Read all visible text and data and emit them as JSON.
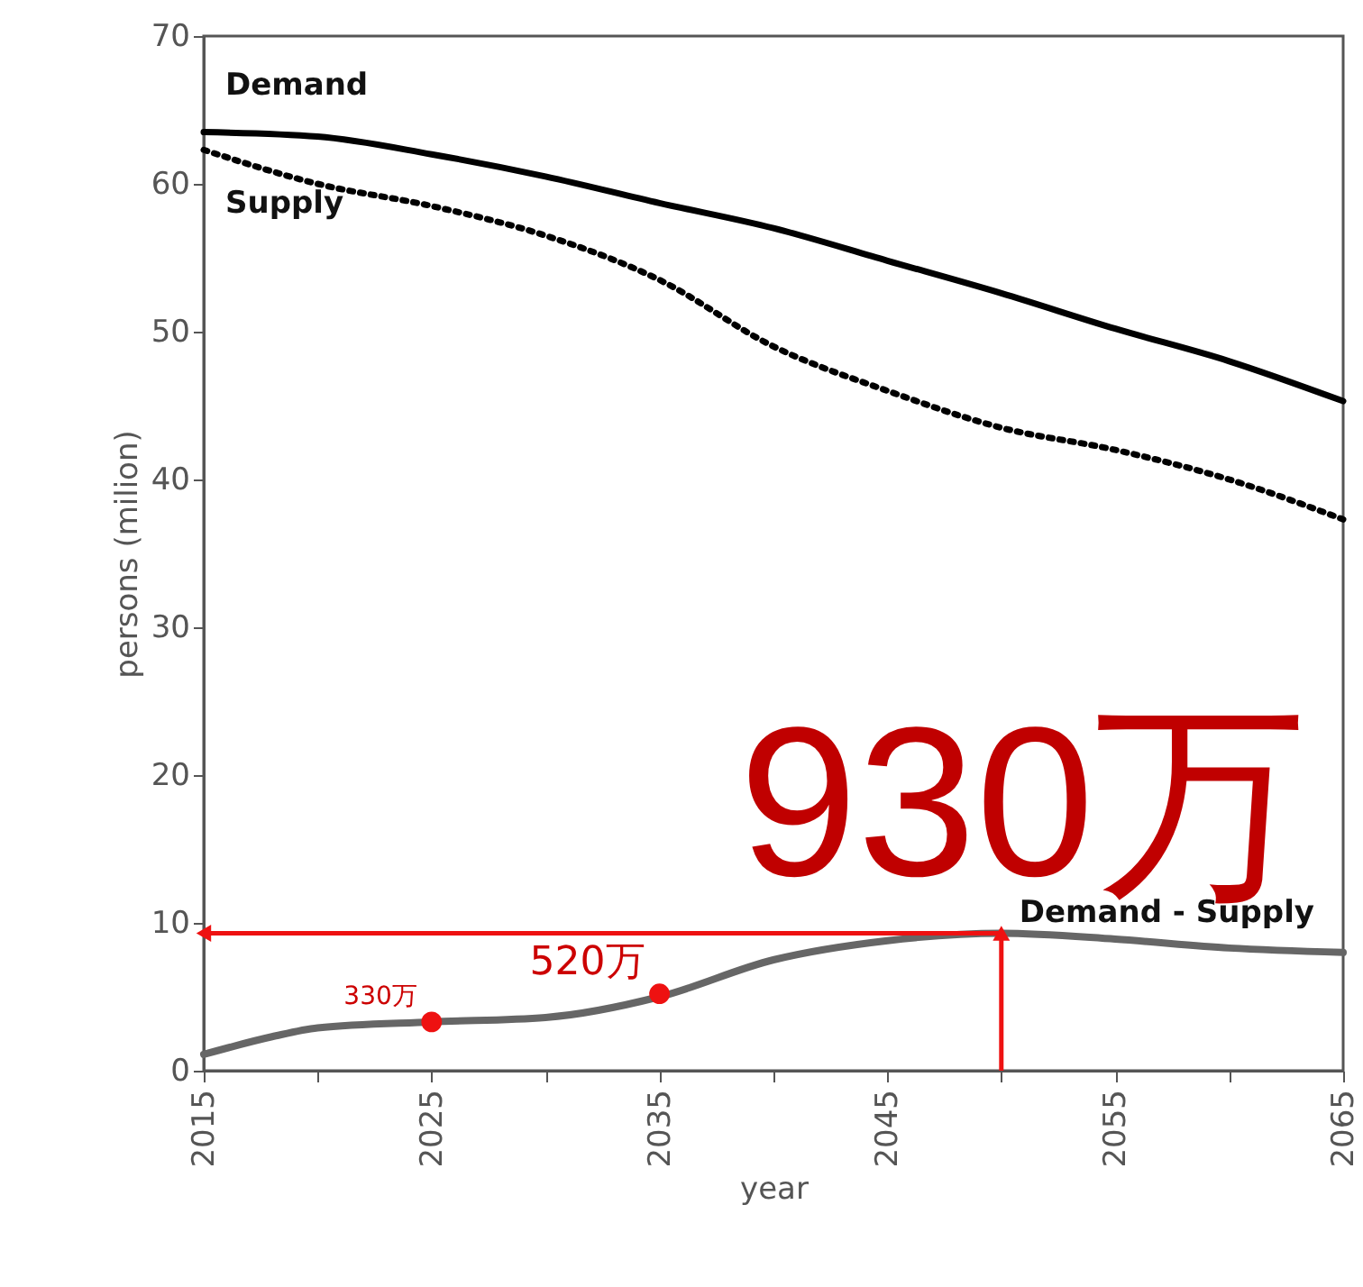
{
  "chart_data": {
    "type": "line",
    "xlabel": "year",
    "ylabel": "persons (milion)",
    "xlim": [
      2015,
      2065
    ],
    "ylim": [
      0,
      70
    ],
    "xticks": [
      2015,
      {
        "value": 2020,
        "label": null
      },
      2025,
      {
        "value": 2030,
        "label": null
      },
      2035,
      {
        "value": 2040,
        "label": null
      },
      2045,
      {
        "value": 2050,
        "label": null
      },
      2055,
      {
        "value": 2060,
        "label": null
      },
      2065
    ],
    "yticks": [
      0,
      10,
      20,
      30,
      40,
      50,
      60,
      70
    ],
    "grid": false,
    "marker": "none",
    "series": [
      {
        "name": "Demand",
        "color": "#000000",
        "line_style": "solid",
        "x": [
          2015,
          2020,
          2025,
          2030,
          2035,
          2040,
          2045,
          2050,
          2055,
          2060,
          2065
        ],
        "values": [
          63.5,
          63.2,
          62.0,
          60.5,
          58.7,
          57.0,
          54.8,
          52.6,
          50.2,
          48.0,
          45.3
        ]
      },
      {
        "name": "Supply",
        "color": "#000000",
        "line_style": "dotted",
        "x": [
          2015,
          2020,
          2025,
          2030,
          2035,
          2040,
          2045,
          2050,
          2055,
          2060,
          2065
        ],
        "values": [
          62.3,
          60.0,
          58.5,
          56.5,
          53.5,
          49.0,
          46.0,
          43.5,
          42.0,
          40.0,
          37.3
        ]
      },
      {
        "name": "Demand - Supply",
        "color": "#666666",
        "line_style": "solid",
        "x": [
          2015,
          2018,
          2020,
          2025,
          2030,
          2035,
          2040,
          2045,
          2050,
          2055,
          2060,
          2065
        ],
        "values": [
          1.1,
          2.3,
          2.9,
          3.3,
          3.6,
          5.0,
          7.5,
          8.8,
          9.3,
          8.9,
          8.3,
          8.0
        ]
      },
      {
        "type": "scatter",
        "marker": "circle",
        "color": "#ee1111",
        "x": [
          2025,
          2035
        ],
        "values": [
          3.3,
          5.2
        ]
      }
    ],
    "annotations": [
      {
        "text": "330万",
        "x": 2025,
        "y": 3.3
      },
      {
        "text": "520万",
        "x": 2035,
        "y": 5.2
      },
      {
        "text": "930万",
        "x": 2050,
        "y": 9.3
      }
    ]
  }
}
